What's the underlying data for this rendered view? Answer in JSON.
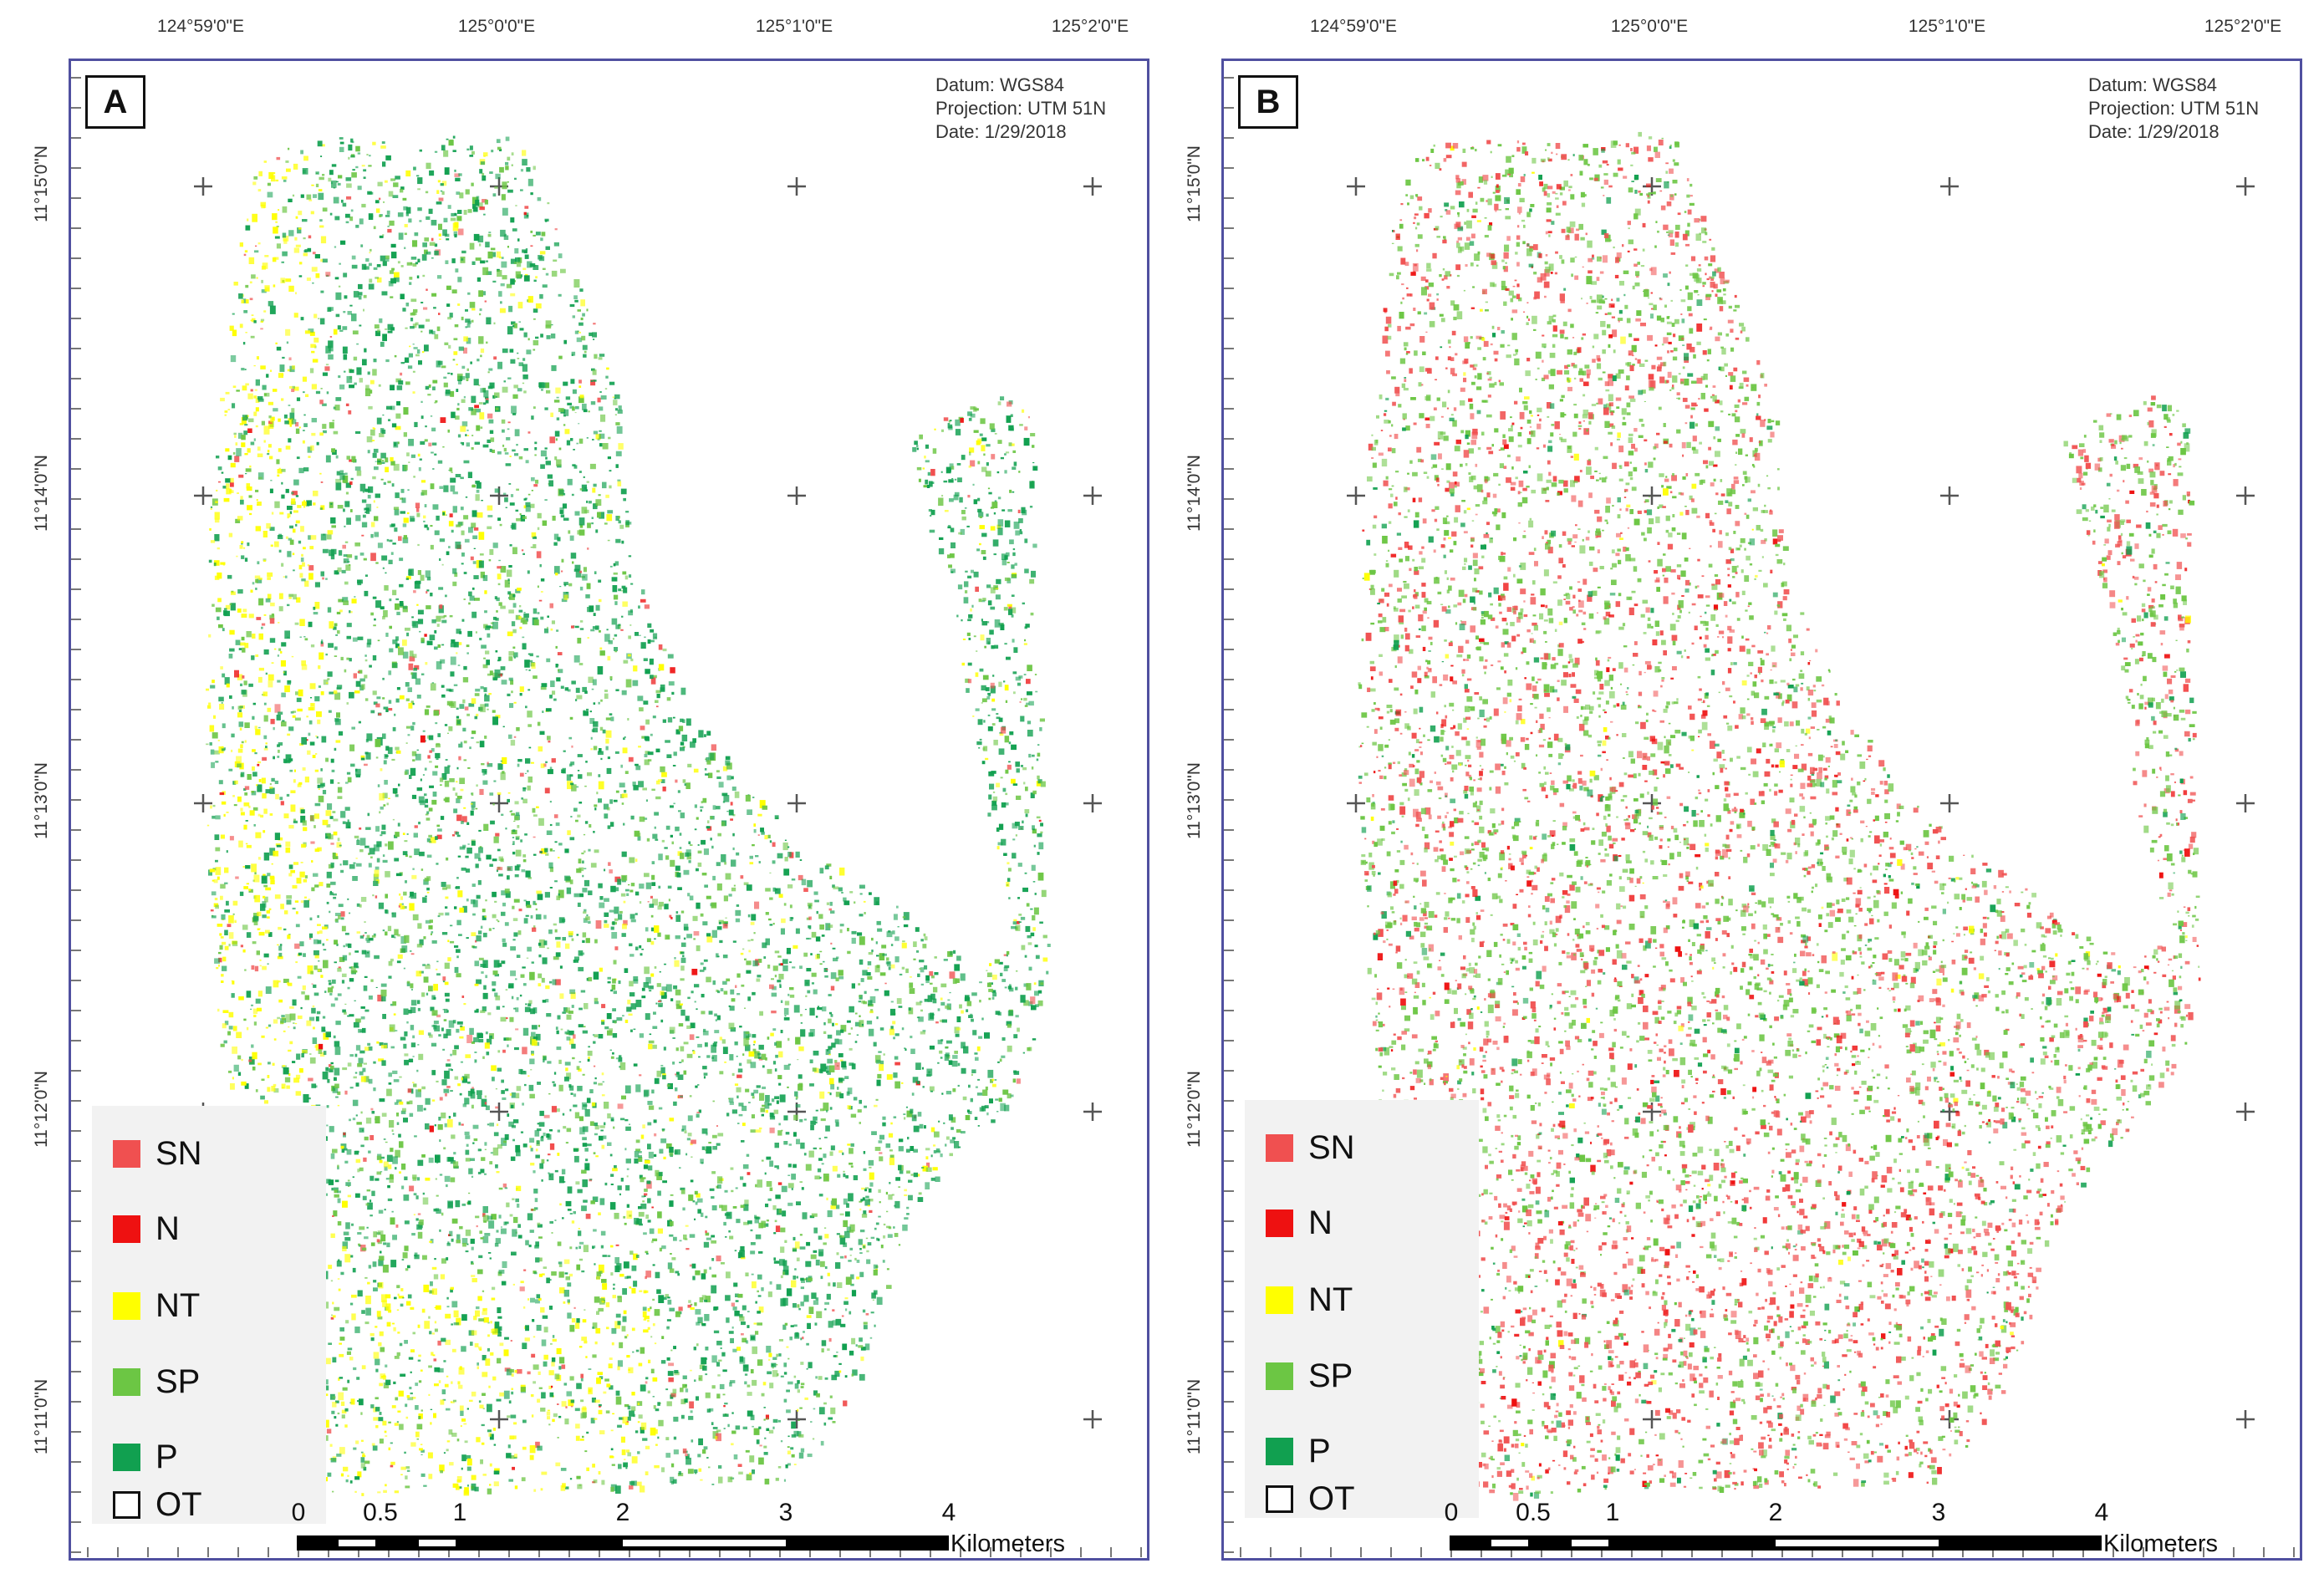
{
  "graticule": {
    "longitude_labels": [
      "124°59'0\"E",
      "125°0'0\"E",
      "125°1'0\"E",
      "125°2'0\"E"
    ],
    "latitude_labels": [
      "11°15'0\"N",
      "11°14'0\"N",
      "11°13'0\"N",
      "11°12'0\"N",
      "11°11'0\"N"
    ]
  },
  "panels": [
    {
      "label": "A",
      "metadata": {
        "datum": "Datum: WGS84",
        "projection": "Projection: UTM 51N",
        "date": "Date: 1/29/2018"
      },
      "dominant_classes": [
        "P",
        "SP",
        "NT"
      ]
    },
    {
      "label": "B",
      "metadata": {
        "datum": "Datum: WGS84",
        "projection": "Projection: UTM 51N",
        "date": "Date: 1/29/2018"
      },
      "dominant_classes": [
        "SP",
        "SN",
        "N"
      ]
    }
  ],
  "legend": [
    {
      "label": "SN",
      "color": "#f05050"
    },
    {
      "label": "N",
      "color": "#ee1111"
    },
    {
      "label": "NT",
      "color": "#ffff00"
    },
    {
      "label": "SP",
      "color": "#6cc644"
    },
    {
      "label": "P",
      "color": "#11a050"
    },
    {
      "label": "OT",
      "color": "#ffffff"
    }
  ],
  "scale_bar": {
    "ticks": [
      "0",
      "0.5",
      "1",
      "2",
      "3",
      "4"
    ],
    "unit": "Kilometers"
  }
}
